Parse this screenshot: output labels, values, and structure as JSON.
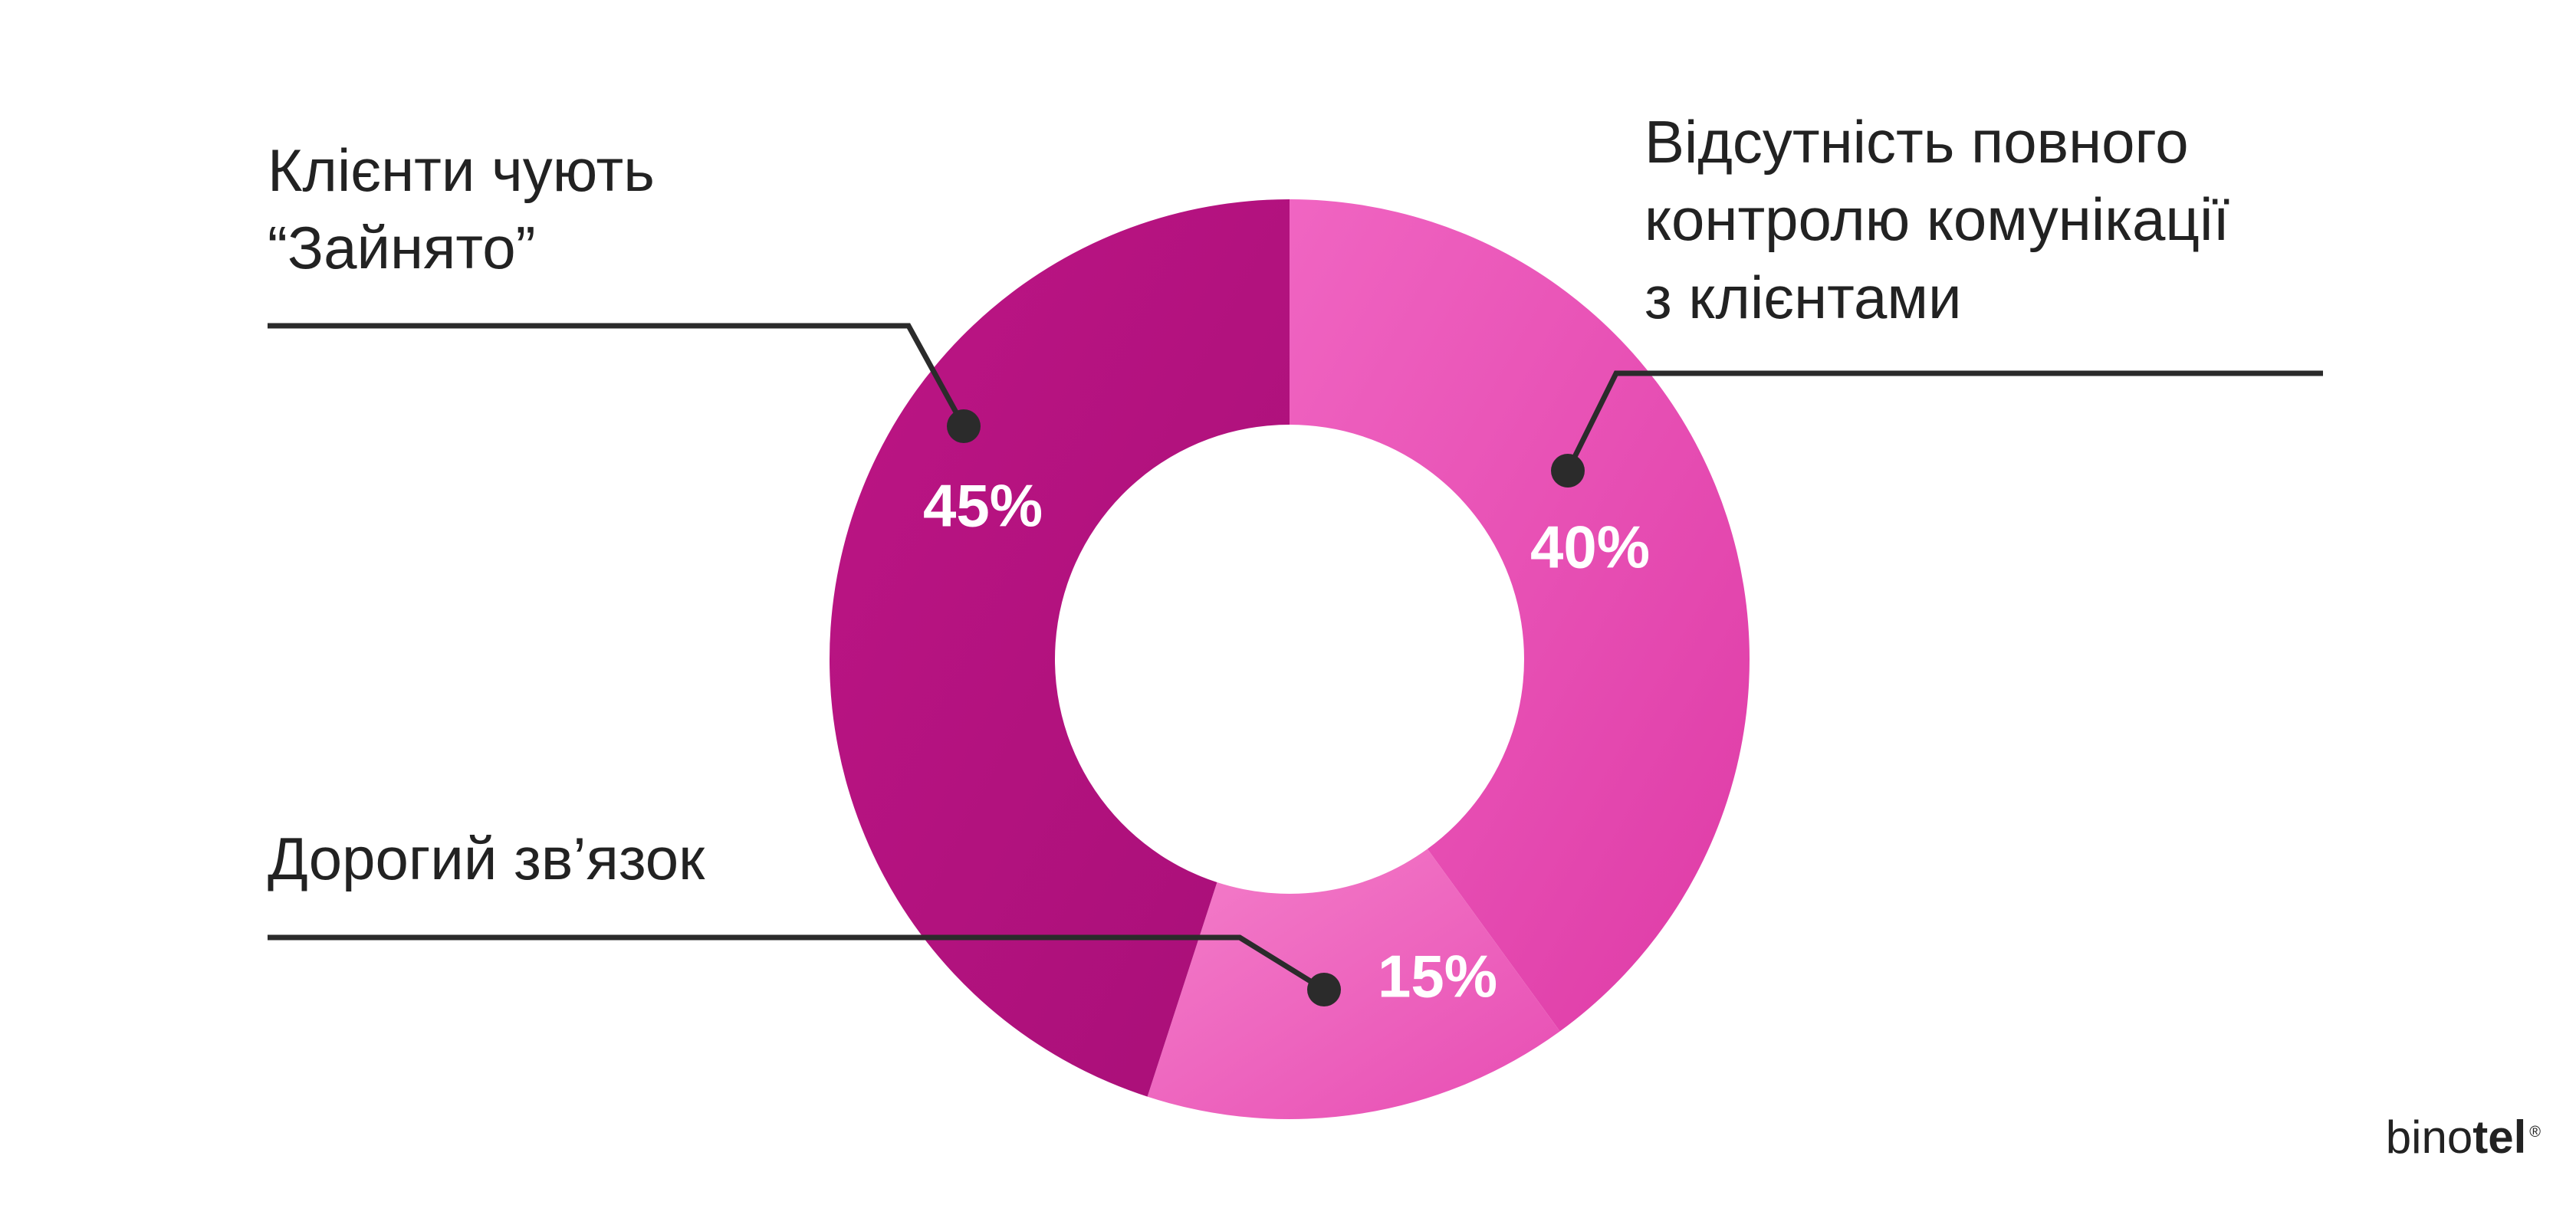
{
  "chart_data": {
    "type": "pie",
    "donut": true,
    "categories": [
      "Відсутність повного контролю комунікації з клієнтами",
      "Дорогий зв’язок",
      "Клієнти чують “Зайнято”"
    ],
    "values": [
      40,
      15,
      45
    ],
    "data_labels": [
      "40%",
      "15%",
      "45%"
    ],
    "colors": [
      "#e53fab",
      "#ef62bd",
      "#b3127f"
    ],
    "unit": "%"
  },
  "callouts": {
    "control": [
      "Відсутність повного",
      "контролю комунікації",
      "з клієнтами"
    ],
    "cost": [
      "Дорогий зв’язок"
    ],
    "busy": [
      "Клієнти чують",
      "“Зайнято”"
    ]
  },
  "brand": {
    "part1": "bino",
    "part2": "tel",
    "mark": "®"
  },
  "colors": {
    "leader_line": "#2b2b2b",
    "label_text": "#ffffff",
    "callout_text": "#222222"
  }
}
